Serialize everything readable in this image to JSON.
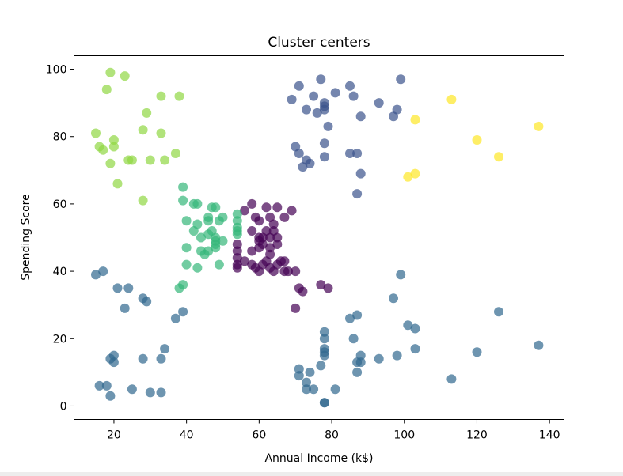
{
  "chart_data": {
    "type": "scatter",
    "title": "Cluster centers",
    "xlabel": "Annual Income (k$)",
    "ylabel": "Spending Score",
    "xlim": [
      9,
      144
    ],
    "ylim": [
      -4,
      104
    ],
    "xticks": [
      20,
      40,
      60,
      80,
      100,
      120,
      140
    ],
    "yticks": [
      0,
      20,
      40,
      60,
      80,
      100
    ],
    "grid": false,
    "legend": "none",
    "marker_alpha": 0.7,
    "series": [
      {
        "color": "#440154",
        "points": [
          [
            56,
            58
          ],
          [
            58,
            60
          ],
          [
            60,
            55
          ],
          [
            62,
            59
          ],
          [
            65,
            59
          ],
          [
            69,
            58
          ],
          [
            67,
            56
          ],
          [
            63,
            56
          ],
          [
            64,
            54
          ],
          [
            58,
            52
          ],
          [
            60,
            50
          ],
          [
            60,
            49
          ],
          [
            61,
            48
          ],
          [
            63,
            47
          ],
          [
            63,
            45
          ],
          [
            60,
            47
          ],
          [
            58,
            46
          ],
          [
            54,
            48
          ],
          [
            54,
            46
          ],
          [
            54,
            44
          ],
          [
            54,
            42
          ],
          [
            54,
            41
          ],
          [
            56,
            43
          ],
          [
            58,
            42
          ],
          [
            59,
            41
          ],
          [
            60,
            40
          ],
          [
            61,
            42
          ],
          [
            62,
            43
          ],
          [
            63,
            41
          ],
          [
            64,
            40
          ],
          [
            65,
            42
          ],
          [
            66,
            43
          ],
          [
            67,
            43
          ],
          [
            67,
            40
          ],
          [
            62,
            52
          ],
          [
            64,
            52
          ],
          [
            65,
            50
          ],
          [
            65,
            48
          ],
          [
            63,
            50
          ],
          [
            61,
            50
          ],
          [
            59,
            56
          ],
          [
            68,
            40
          ],
          [
            70,
            40
          ],
          [
            71,
            35
          ],
          [
            72,
            34
          ],
          [
            77,
            36
          ],
          [
            79,
            35
          ],
          [
            70,
            29
          ]
        ]
      },
      {
        "color": "#3b528b",
        "points": [
          [
            69,
            91
          ],
          [
            71,
            95
          ],
          [
            73,
            88
          ],
          [
            75,
            92
          ],
          [
            76,
            87
          ],
          [
            77,
            97
          ],
          [
            78,
            90
          ],
          [
            78,
            88
          ],
          [
            78,
            89
          ],
          [
            81,
            93
          ],
          [
            79,
            83
          ],
          [
            85,
            95
          ],
          [
            86,
            92
          ],
          [
            88,
            86
          ],
          [
            93,
            90
          ],
          [
            97,
            86
          ],
          [
            98,
            88
          ],
          [
            99,
            97
          ],
          [
            70,
            77
          ],
          [
            71,
            75
          ],
          [
            72,
            71
          ],
          [
            73,
            73
          ],
          [
            74,
            72
          ],
          [
            78,
            78
          ],
          [
            78,
            74
          ],
          [
            85,
            75
          ],
          [
            87,
            75
          ],
          [
            88,
            69
          ],
          [
            87,
            63
          ]
        ]
      },
      {
        "color": "#31688e",
        "points": [
          [
            15,
            39
          ],
          [
            17,
            40
          ],
          [
            21,
            35
          ],
          [
            24,
            35
          ],
          [
            23,
            29
          ],
          [
            28,
            32
          ],
          [
            29,
            31
          ],
          [
            37,
            26
          ],
          [
            39,
            28
          ],
          [
            16,
            6
          ],
          [
            18,
            6
          ],
          [
            19,
            3
          ],
          [
            19,
            14
          ],
          [
            20,
            13
          ],
          [
            20,
            15
          ],
          [
            25,
            5
          ],
          [
            28,
            14
          ],
          [
            30,
            4
          ],
          [
            33,
            4
          ],
          [
            33,
            14
          ],
          [
            34,
            17
          ],
          [
            71,
            11
          ],
          [
            71,
            9
          ],
          [
            73,
            7
          ],
          [
            73,
            5
          ],
          [
            74,
            10
          ],
          [
            75,
            5
          ],
          [
            77,
            12
          ],
          [
            78,
            15
          ],
          [
            78,
            17
          ],
          [
            78,
            16
          ],
          [
            78,
            20
          ],
          [
            78,
            22
          ],
          [
            78,
            1
          ],
          [
            78,
            1
          ],
          [
            81,
            5
          ],
          [
            85,
            26
          ],
          [
            86,
            20
          ],
          [
            87,
            27
          ],
          [
            87,
            13
          ],
          [
            87,
            10
          ],
          [
            88,
            13
          ],
          [
            88,
            15
          ],
          [
            93,
            14
          ],
          [
            97,
            32
          ],
          [
            98,
            15
          ],
          [
            99,
            39
          ],
          [
            101,
            24
          ],
          [
            103,
            23
          ],
          [
            103,
            17
          ],
          [
            113,
            8
          ],
          [
            120,
            16
          ],
          [
            126,
            28
          ],
          [
            137,
            18
          ]
        ]
      },
      {
        "color": "#35b779",
        "points": [
          [
            39,
            65
          ],
          [
            39,
            61
          ],
          [
            40,
            55
          ],
          [
            40,
            47
          ],
          [
            40,
            42
          ],
          [
            42,
            60
          ],
          [
            42,
            52
          ],
          [
            43,
            41
          ],
          [
            43,
            54
          ],
          [
            43,
            60
          ],
          [
            44,
            50
          ],
          [
            44,
            46
          ],
          [
            45,
            45
          ],
          [
            46,
            51
          ],
          [
            46,
            46
          ],
          [
            46,
            56
          ],
          [
            46,
            55
          ],
          [
            47,
            59
          ],
          [
            47,
            52
          ],
          [
            48,
            59
          ],
          [
            48,
            50
          ],
          [
            48,
            49
          ],
          [
            48,
            47
          ],
          [
            48,
            48
          ],
          [
            49,
            55
          ],
          [
            49,
            42
          ],
          [
            50,
            49
          ],
          [
            50,
            56
          ],
          [
            54,
            57
          ],
          [
            54,
            55
          ],
          [
            54,
            53
          ],
          [
            54,
            51
          ],
          [
            54,
            52
          ],
          [
            38,
            35
          ],
          [
            39,
            36
          ]
        ]
      },
      {
        "color": "#90d743",
        "points": [
          [
            15,
            81
          ],
          [
            16,
            77
          ],
          [
            17,
            76
          ],
          [
            18,
            94
          ],
          [
            19,
            72
          ],
          [
            19,
            99
          ],
          [
            20,
            79
          ],
          [
            20,
            77
          ],
          [
            21,
            66
          ],
          [
            23,
            98
          ],
          [
            24,
            73
          ],
          [
            25,
            73
          ],
          [
            28,
            82
          ],
          [
            28,
            61
          ],
          [
            29,
            87
          ],
          [
            30,
            73
          ],
          [
            33,
            92
          ],
          [
            33,
            81
          ],
          [
            34,
            73
          ],
          [
            37,
            75
          ],
          [
            38,
            92
          ]
        ]
      },
      {
        "color": "#fde725",
        "points": [
          [
            101,
            68
          ],
          [
            103,
            69
          ],
          [
            103,
            85
          ],
          [
            113,
            91
          ],
          [
            120,
            79
          ],
          [
            126,
            74
          ],
          [
            137,
            83
          ]
        ]
      }
    ]
  }
}
